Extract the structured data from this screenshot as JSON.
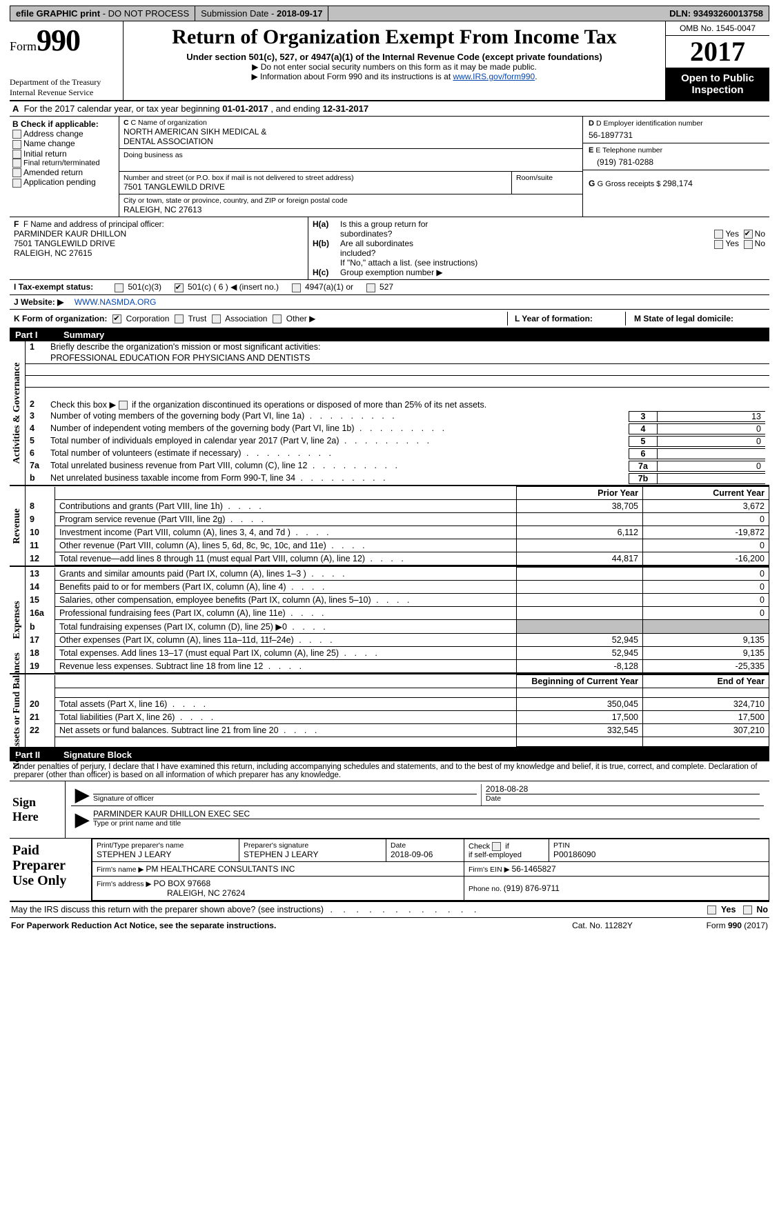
{
  "topbar": {
    "efile": "efile GRAPHIC print",
    "submission_label": "Submission Date - ",
    "submission_date": "2018-09-17",
    "dln_label": "DLN: ",
    "dln": "93493260013758"
  },
  "header": {
    "form_label": "Form",
    "form_number": "990",
    "dept": "Department of the Treasury",
    "irs": "Internal Revenue Service",
    "title": "Return of Organization Exempt From Income Tax",
    "sub": "Under section 501(c), 527, or 4947(a)(1) of the Internal Revenue Code (except private foundations)",
    "note1": "▶ Do not enter social security numbers on this form as it may be made public.",
    "note2_a": "▶ Information about Form 990 and its instructions is at ",
    "note2_link": "www.IRS.gov/form990",
    "omb": "OMB No. 1545-0047",
    "year": "2017",
    "inspect1": "Open to Public",
    "inspect2": "Inspection"
  },
  "rowA": {
    "a": "A",
    "text_a": "For the 2017 calendar year, or tax year beginning ",
    "begin": "01-01-2017",
    "text_b": " , and ending ",
    "end": "12-31-2017"
  },
  "colB": {
    "title": "B Check if applicable:",
    "items": [
      "Address change",
      "Name change",
      "Initial return",
      "Final return/terminated",
      "Amended return",
      "Application pending"
    ]
  },
  "colC": {
    "name_label": "C Name of organization",
    "name1": "NORTH AMERICAN SIKH MEDICAL &",
    "name2": "DENTAL ASSOCIATION",
    "dba_label": "Doing business as",
    "street_label": "Number and street (or P.O. box if mail is not delivered to street address)",
    "street": "7501 TANGLEWILD DRIVE",
    "room_label": "Room/suite",
    "city_label": "City or town, state or province, country, and ZIP or foreign postal code",
    "city": "RALEIGH, NC  27613"
  },
  "colD": {
    "d_label": "D Employer identification number",
    "ein": "56-1897731",
    "e_label": "E Telephone number",
    "phone": "(919) 781-0288",
    "g_label": "G Gross receipts $ ",
    "gross": "298,174"
  },
  "rowF": {
    "label": "F  Name and address of principal officer:",
    "name": "PARMINDER KAUR DHILLON",
    "addr1": "7501 TANGLEWILD DRIVE",
    "addr2": "RALEIGH, NC  27615"
  },
  "rowH": {
    "Ha_label": "H(a)",
    "Ha_text1": "Is this a group return for",
    "Ha_text2": "subordinates?",
    "yes": "Yes",
    "no": "No",
    "Hb_label": "H(b)",
    "Hb_text1": "Are all subordinates",
    "Hb_text2": "included?",
    "ifno": "If \"No,\" attach a list. (see instructions)",
    "Hc_label": "H(c)",
    "Hc_text": "Group exemption number ▶"
  },
  "rowI": {
    "label": "I  Tax-exempt status:",
    "o1": "501(c)(3)",
    "o2": "501(c) ( 6 ) ◀ (insert no.)",
    "o3": "4947(a)(1) or",
    "o4": "527"
  },
  "rowJ": {
    "label": "J  Website: ▶",
    "value": "WWW.NASMDA.ORG"
  },
  "rowK": {
    "label": "K Form of organization:",
    "o1": "Corporation",
    "o2": "Trust",
    "o3": "Association",
    "o4": "Other ▶",
    "L": "L Year of formation:",
    "M": "M State of legal domicile:"
  },
  "part1": {
    "head": "Part I",
    "title": "Summary",
    "gov": {
      "label": "Activities & Governance",
      "q1_label": "1",
      "q1": "Briefly describe the organization's mission or most significant activities:",
      "q1_ans": "PROFESSIONAL EDUCATION FOR PHYSICIANS AND DENTISTS",
      "q2_label": "2",
      "q2": "Check this box ▶       if the organization discontinued its operations or disposed of more than 25% of its net assets.",
      "rows": [
        {
          "n": "3",
          "t": "Number of voting members of the governing body (Part VI, line 1a)",
          "r": "3",
          "v": "13"
        },
        {
          "n": "4",
          "t": "Number of independent voting members of the governing body (Part VI, line 1b)",
          "r": "4",
          "v": "0"
        },
        {
          "n": "5",
          "t": "Total number of individuals employed in calendar year 2017 (Part V, line 2a)",
          "r": "5",
          "v": "0"
        },
        {
          "n": "6",
          "t": "Total number of volunteers (estimate if necessary)",
          "r": "6",
          "v": ""
        },
        {
          "n": "7a",
          "t": "Total unrelated business revenue from Part VIII, column (C), line 12",
          "r": "7a",
          "v": "0"
        },
        {
          "n": "b",
          "t": "Net unrelated business taxable income from Form 990-T, line 34",
          "r": "7b",
          "v": ""
        }
      ]
    },
    "rev": {
      "label": "Revenue",
      "head_prior": "Prior Year",
      "head_curr": "Current Year",
      "rows": [
        {
          "n": "8",
          "t": "Contributions and grants (Part VIII, line 1h)",
          "p": "38,705",
          "c": "3,672"
        },
        {
          "n": "9",
          "t": "Program service revenue (Part VIII, line 2g)",
          "p": "",
          "c": "0"
        },
        {
          "n": "10",
          "t": "Investment income (Part VIII, column (A), lines 3, 4, and 7d )",
          "p": "6,112",
          "c": "-19,872"
        },
        {
          "n": "11",
          "t": "Other revenue (Part VIII, column (A), lines 5, 6d, 8c, 9c, 10c, and 11e)",
          "p": "",
          "c": "0"
        },
        {
          "n": "12",
          "t": "Total revenue—add lines 8 through 11 (must equal Part VIII, column (A), line 12)",
          "p": "44,817",
          "c": "-16,200"
        }
      ]
    },
    "exp": {
      "label": "Expenses",
      "rows": [
        {
          "n": "13",
          "t": "Grants and similar amounts paid (Part IX, column (A), lines 1–3 )",
          "p": "",
          "c": "0"
        },
        {
          "n": "14",
          "t": "Benefits paid to or for members (Part IX, column (A), line 4)",
          "p": "",
          "c": "0"
        },
        {
          "n": "15",
          "t": "Salaries, other compensation, employee benefits (Part IX, column (A), lines 5–10)",
          "p": "",
          "c": "0"
        },
        {
          "n": "16a",
          "t": "Professional fundraising fees (Part IX, column (A), line 11e)",
          "p": "",
          "c": "0"
        },
        {
          "n": "b",
          "t": "Total fundraising expenses (Part IX, column (D), line 25) ▶0",
          "p": "gray",
          "c": "gray"
        },
        {
          "n": "17",
          "t": "Other expenses (Part IX, column (A), lines 11a–11d, 11f–24e)",
          "p": "52,945",
          "c": "9,135"
        },
        {
          "n": "18",
          "t": "Total expenses. Add lines 13–17 (must equal Part IX, column (A), line 25)",
          "p": "52,945",
          "c": "9,135"
        },
        {
          "n": "19",
          "t": "Revenue less expenses. Subtract line 18 from line 12",
          "p": "-8,128",
          "c": "-25,335"
        }
      ]
    },
    "net": {
      "label": "Net Assets or Fund Balances",
      "head_begin": "Beginning of Current Year",
      "head_end": "End of Year",
      "rows": [
        {
          "n": "20",
          "t": "Total assets (Part X, line 16)",
          "p": "350,045",
          "c": "324,710"
        },
        {
          "n": "21",
          "t": "Total liabilities (Part X, line 26)",
          "p": "17,500",
          "c": "17,500"
        },
        {
          "n": "22",
          "t": "Net assets or fund balances. Subtract line 21 from line 20",
          "p": "332,545",
          "c": "307,210"
        }
      ]
    }
  },
  "part2": {
    "head": "Part II",
    "title": "Signature Block",
    "declare": "Under penalties of perjury, I declare that I have examined this return, including accompanying schedules and statements, and to the best of my knowledge and belief, it is true, correct, and complete. Declaration of preparer (other than officer) is based on all information of which preparer has any knowledge.",
    "sign_label": "Sign Here",
    "sig_officer_cap": "Signature of officer",
    "sig_date": "2018-08-28",
    "sig_date_cap": "Date",
    "typed_name": "PARMINDER KAUR DHILLON EXEC SEC",
    "typed_cap": "Type or print name and title"
  },
  "paid": {
    "label": "Paid Preparer Use Only",
    "r1_a_cap": "Print/Type preparer's name",
    "r1_a": "STEPHEN J LEARY",
    "r1_b_cap": "Preparer's signature",
    "r1_b": "STEPHEN J LEARY",
    "r1_c_cap": "Date",
    "r1_c": "2018-09-06",
    "r1_d1": "Check",
    "r1_d2": "if self-employed",
    "r1_e_cap": "PTIN",
    "r1_e": "P00186090",
    "r2_a_cap": "Firm's name    ▶ ",
    "r2_a": "PM HEALTHCARE CONSULTANTS INC",
    "r2_b_cap": "Firm's EIN ▶ ",
    "r2_b": "56-1465827",
    "r3_a_cap": "Firm's address ▶ ",
    "r3_a": "PO BOX 97668",
    "r3_a2": "RALEIGH, NC  27624",
    "r3_b_cap": "Phone no. ",
    "r3_b": "(919) 876-9711"
  },
  "discuss": {
    "text": "May the IRS discuss this return with the preparer shown above? (see instructions)",
    "yes": "Yes",
    "no": "No"
  },
  "footer": {
    "left": "For Paperwork Reduction Act Notice, see the separate instructions.",
    "mid": "Cat. No. 11282Y",
    "right_a": "Form ",
    "right_b": "990",
    "right_c": " (2017)"
  }
}
